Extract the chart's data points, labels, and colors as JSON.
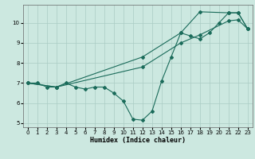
{
  "xlabel": "Humidex (Indice chaleur)",
  "ylabel": "",
  "bg_color": "#cce8e0",
  "grid_color": "#aaccC4",
  "line_color": "#1a6b5a",
  "xlim": [
    -0.5,
    23.5
  ],
  "ylim": [
    4.8,
    10.9
  ],
  "xticks": [
    0,
    1,
    2,
    3,
    4,
    5,
    6,
    7,
    8,
    9,
    10,
    11,
    12,
    13,
    14,
    15,
    16,
    17,
    18,
    19,
    20,
    21,
    22,
    23
  ],
  "yticks": [
    5,
    6,
    7,
    8,
    9,
    10
  ],
  "series1_x": [
    0,
    1,
    2,
    3,
    4,
    5,
    6,
    7,
    8,
    9,
    10,
    11,
    12,
    13,
    14,
    15,
    16,
    17,
    18,
    19,
    20,
    21,
    22,
    23
  ],
  "series1_y": [
    7.0,
    7.0,
    6.8,
    6.8,
    7.0,
    6.8,
    6.7,
    6.8,
    6.8,
    6.5,
    6.1,
    5.2,
    5.15,
    5.6,
    7.1,
    8.3,
    9.5,
    9.35,
    9.2,
    9.5,
    10.0,
    10.5,
    10.5,
    9.7
  ],
  "series2_x": [
    0,
    3,
    12,
    16,
    18,
    21,
    22,
    23
  ],
  "series2_y": [
    7.0,
    6.8,
    8.3,
    9.5,
    10.55,
    10.5,
    10.5,
    9.7
  ],
  "series3_x": [
    0,
    3,
    12,
    16,
    18,
    21,
    22,
    23
  ],
  "series3_y": [
    7.0,
    6.8,
    7.8,
    9.0,
    9.4,
    10.1,
    10.15,
    9.7
  ]
}
